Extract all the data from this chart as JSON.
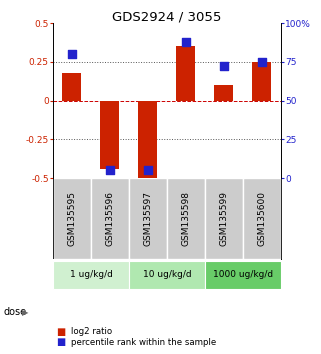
{
  "title": "GDS2924 / 3055",
  "samples": [
    "GSM135595",
    "GSM135596",
    "GSM135597",
    "GSM135598",
    "GSM135599",
    "GSM135600"
  ],
  "log2_ratio": [
    0.18,
    -0.44,
    -0.52,
    0.35,
    0.1,
    0.25
  ],
  "percentile": [
    80,
    5,
    5,
    88,
    72,
    75
  ],
  "ylim_left": [
    -0.5,
    0.5
  ],
  "ylim_right": [
    0,
    100
  ],
  "yticks_left": [
    -0.5,
    -0.25,
    0.0,
    0.25,
    0.5
  ],
  "yticks_right": [
    0,
    25,
    50,
    75,
    100
  ],
  "ytick_labels_left": [
    "-0.5",
    "-0.25",
    "0",
    "0.25",
    "0.5"
  ],
  "ytick_labels_right": [
    "0",
    "25",
    "50",
    "75",
    "100%"
  ],
  "dose_groups": [
    {
      "label": "1 ug/kg/d",
      "samples": [
        "GSM135595",
        "GSM135596"
      ],
      "color": "#d0f0d0"
    },
    {
      "label": "10 ug/kg/d",
      "samples": [
        "GSM135597",
        "GSM135598"
      ],
      "color": "#b0e8b0"
    },
    {
      "label": "1000 ug/kg/d",
      "samples": [
        "GSM135599",
        "GSM135600"
      ],
      "color": "#68cc68"
    }
  ],
  "bar_color": "#cc2200",
  "dot_color": "#2222cc",
  "bar_width": 0.5,
  "dot_size": 28,
  "hline_zero_color": "#cc0000",
  "dotted_line_color": "#555555",
  "sample_box_color": "#cccccc",
  "legend_red_label": "log2 ratio",
  "legend_blue_label": "percentile rank within the sample",
  "dose_label": "dose",
  "background_color": "#ffffff"
}
